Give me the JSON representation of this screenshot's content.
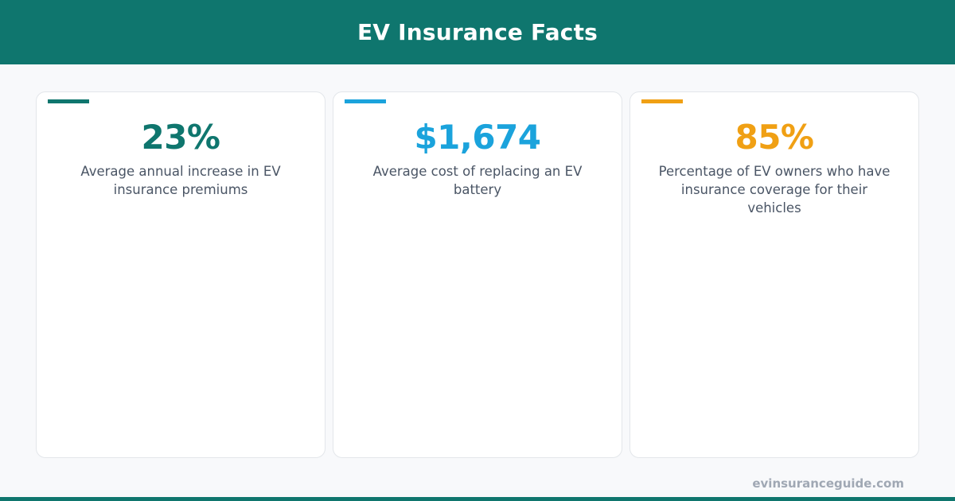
{
  "header": {
    "title": "EV Insurance Facts"
  },
  "colors": {
    "header_bg": "#0f766e",
    "teal": "#0f766e",
    "blue": "#1ba3dc",
    "amber": "#f0a014",
    "description_text": "#4a5565",
    "footer_text": "#a0a8b4"
  },
  "cards": [
    {
      "value": "23%",
      "description": "Average annual increase in EV insurance premiums",
      "accent": "#0f766e"
    },
    {
      "value": "$1,674",
      "description": "Average cost of replacing an EV battery",
      "accent": "#1ba3dc"
    },
    {
      "value": "85%",
      "description": "Percentage of EV owners who have insurance coverage for their vehicles",
      "accent": "#f0a014"
    }
  ],
  "footer": {
    "url": "evinsuranceguide.com"
  }
}
